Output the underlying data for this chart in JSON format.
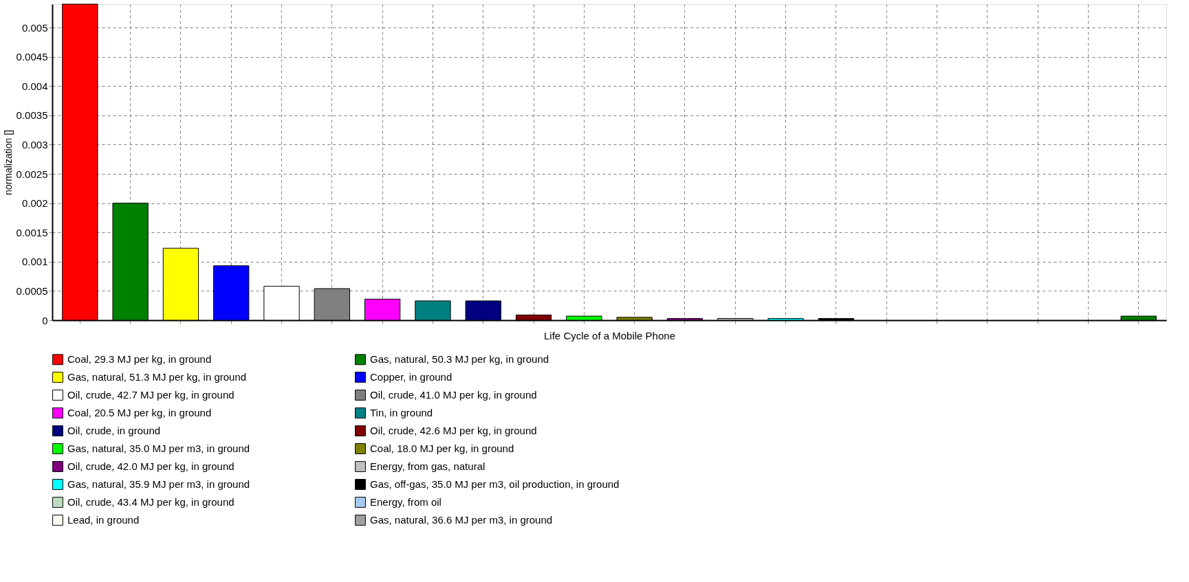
{
  "chart_data": {
    "type": "bar",
    "categories": [
      "Life Cycle of a Mobile Phone"
    ],
    "ylabel": "normalization []",
    "ylim": [
      0,
      0.0054
    ],
    "yticks": [
      0,
      0.0005,
      0.001,
      0.0015,
      0.002,
      0.0025,
      0.003,
      0.0035,
      0.004,
      0.0045,
      0.005
    ],
    "grid": true,
    "legend": "bottom",
    "series": [
      {
        "name": "Coal, 29.3 MJ per kg, in ground",
        "color": "#ff0000",
        "values": [
          0.0054
        ]
      },
      {
        "name": "Gas, natural, 50.3 MJ per kg, in ground",
        "color": "#008000",
        "values": [
          0.002
        ]
      },
      {
        "name": "Gas, natural, 51.3 MJ per kg, in ground",
        "color": "#ffff00",
        "values": [
          0.00123
        ]
      },
      {
        "name": "Copper, in ground",
        "color": "#0000ff",
        "values": [
          0.00093
        ]
      },
      {
        "name": "Oil, crude, 42.7 MJ per kg, in ground",
        "color": "#ffffff",
        "values": [
          0.00058
        ]
      },
      {
        "name": "Oil, crude, 41.0 MJ per kg, in ground",
        "color": "#808080",
        "values": [
          0.00054
        ]
      },
      {
        "name": "Coal, 20.5 MJ per kg, in ground",
        "color": "#ff00ff",
        "values": [
          0.00036
        ]
      },
      {
        "name": "Tin, in ground",
        "color": "#008080",
        "values": [
          0.00033
        ]
      },
      {
        "name": "Oil, crude, in ground",
        "color": "#000080",
        "values": [
          0.00033
        ]
      },
      {
        "name": "Oil, crude, 42.6 MJ per kg, in ground",
        "color": "#800000",
        "values": [
          9e-05
        ]
      },
      {
        "name": "Gas, natural, 35.0 MJ per m3, in ground",
        "color": "#00ff00",
        "values": [
          7e-05
        ]
      },
      {
        "name": "Coal, 18.0 MJ per kg, in ground",
        "color": "#808000",
        "values": [
          5e-05
        ]
      },
      {
        "name": "Oil, crude, 42.0 MJ per kg, in ground",
        "color": "#800080",
        "values": [
          3e-05
        ]
      },
      {
        "name": "Energy, from gas, natural",
        "color": "#c0c0c0",
        "values": [
          3e-05
        ]
      },
      {
        "name": "Gas, natural, 35.9 MJ per m3, in ground",
        "color": "#00ffff",
        "values": [
          3e-05
        ]
      },
      {
        "name": "Gas, off-gas, 35.0 MJ per m3, oil production, in ground",
        "color": "#000000",
        "values": [
          3e-05
        ]
      },
      {
        "name": "Oil, crude, 43.4 MJ per kg, in ground",
        "color": "#c0dcc0",
        "values": [
          0
        ]
      },
      {
        "name": "Energy, from oil",
        "color": "#a6caf0",
        "values": [
          0
        ]
      },
      {
        "name": "Lead, in ground",
        "color": "#fffbf0",
        "values": [
          0
        ]
      },
      {
        "name": "Gas, natural, 36.6 MJ per m3, in ground",
        "color": "#a0a0a4",
        "values": [
          0
        ]
      },
      {
        "color": "#c0c0c0",
        "values": [
          null
        ]
      },
      {
        "color": "#008000",
        "values": [
          7e-05
        ]
      }
    ]
  }
}
